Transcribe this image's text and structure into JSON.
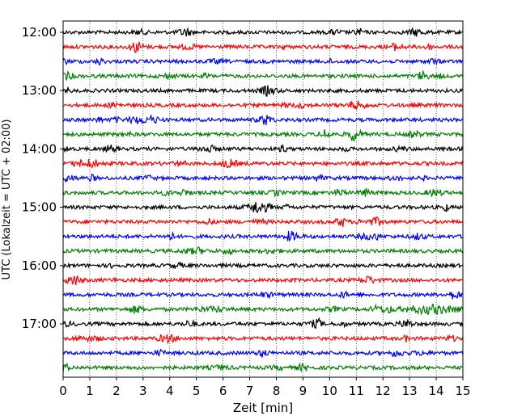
{
  "chart_data": {
    "type": "line",
    "title": "",
    "xlabel": "Zeit  [min]",
    "ylabel": "UTC (Lokalzeit = UTC + 02:00)",
    "xlim": [
      0,
      15
    ],
    "x_ticks": [
      "0",
      "1",
      "2",
      "3",
      "4",
      "5",
      "6",
      "7",
      "8",
      "9",
      "10",
      "11",
      "12",
      "13",
      "14",
      "15"
    ],
    "y_ticks": [
      "12:00",
      "13:00",
      "14:00",
      "15:00",
      "16:00",
      "17:00"
    ],
    "grid": "vertical dotted",
    "trace_interval_min": 15,
    "colors": [
      "#000000",
      "#ff0000",
      "#0000ff",
      "#008000"
    ],
    "traces": [
      {
        "start": "12:00",
        "color": "#000000"
      },
      {
        "start": "12:15",
        "color": "#ff0000"
      },
      {
        "start": "12:30",
        "color": "#0000ff"
      },
      {
        "start": "12:45",
        "color": "#008000"
      },
      {
        "start": "13:00",
        "color": "#000000"
      },
      {
        "start": "13:15",
        "color": "#ff0000"
      },
      {
        "start": "13:30",
        "color": "#0000ff"
      },
      {
        "start": "13:45",
        "color": "#008000"
      },
      {
        "start": "14:00",
        "color": "#000000"
      },
      {
        "start": "14:15",
        "color": "#ff0000"
      },
      {
        "start": "14:30",
        "color": "#0000ff"
      },
      {
        "start": "14:45",
        "color": "#008000"
      },
      {
        "start": "15:00",
        "color": "#000000"
      },
      {
        "start": "15:15",
        "color": "#ff0000"
      },
      {
        "start": "15:30",
        "color": "#0000ff"
      },
      {
        "start": "15:45",
        "color": "#008000"
      },
      {
        "start": "16:00",
        "color": "#000000"
      },
      {
        "start": "16:15",
        "color": "#ff0000"
      },
      {
        "start": "16:30",
        "color": "#0000ff"
      },
      {
        "start": "16:45",
        "color": "#008000"
      },
      {
        "start": "17:00",
        "color": "#000000"
      },
      {
        "start": "17:15",
        "color": "#ff0000"
      },
      {
        "start": "17:30",
        "color": "#0000ff"
      },
      {
        "start": "17:45",
        "color": "#008000"
      }
    ]
  }
}
